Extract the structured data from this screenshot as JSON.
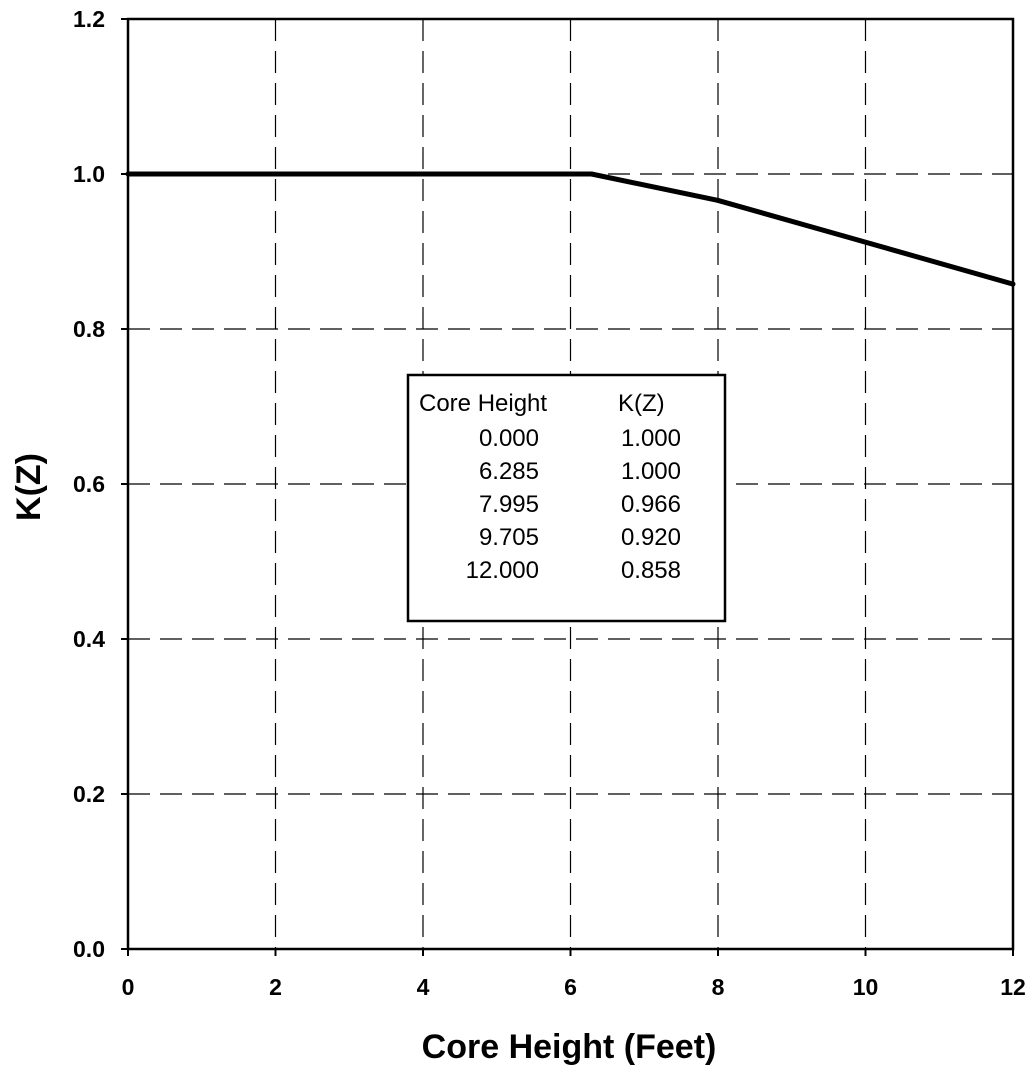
{
  "chart_data": {
    "type": "line",
    "title": "",
    "xlabel": "Core Height (Feet)",
    "ylabel": "K(Z)",
    "xlim": [
      0,
      12
    ],
    "ylim": [
      0.0,
      1.2
    ],
    "x_ticks": [
      "0",
      "2",
      "4",
      "6",
      "8",
      "10",
      "12"
    ],
    "y_ticks": [
      "0.0",
      "0.2",
      "0.4",
      "0.6",
      "0.8",
      "1.0",
      "1.2"
    ],
    "grid": true,
    "grid_style": "dashed",
    "line_color": "#000000",
    "series": [
      {
        "x": [
          0.0,
          6.285,
          7.995,
          9.705,
          12.0
        ],
        "y": [
          1.0,
          1.0,
          0.966,
          0.92,
          0.858
        ]
      }
    ],
    "table": {
      "headers": [
        "Core Height",
        "K(Z)"
      ],
      "rows": [
        [
          "0.000",
          "1.000"
        ],
        [
          "6.285",
          "1.000"
        ],
        [
          "7.995",
          "0.966"
        ],
        [
          "9.705",
          "0.920"
        ],
        [
          "12.000",
          "0.858"
        ]
      ]
    }
  }
}
